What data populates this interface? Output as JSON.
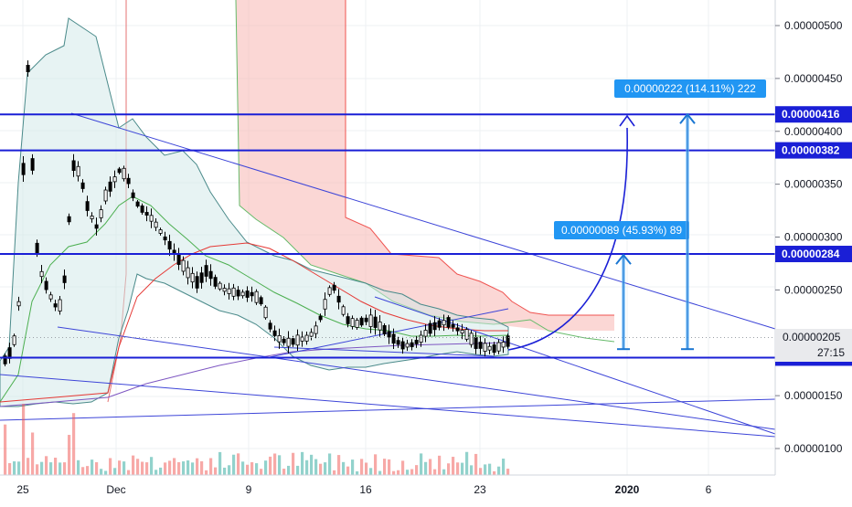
{
  "chart_data": {
    "type": "candlestick",
    "y_axis_ticks": [
      "0.00000500",
      "0.00000450",
      "0.00000400",
      "0.00000350",
      "0.00000300",
      "0.00000250",
      "0.00000150",
      "0.00000100"
    ],
    "x_axis_ticks": [
      "25",
      "Dec",
      "9",
      "16",
      "23",
      "2020",
      "6"
    ],
    "price_levels": [
      {
        "label": "0.00000416",
        "value": 4.16e-06
      },
      {
        "label": "0.00000382",
        "value": 3.82e-06
      },
      {
        "label": "0.00000284",
        "value": 2.84e-06
      },
      {
        "label": "0.00000186",
        "value": 1.86e-06
      }
    ],
    "current_price": {
      "label": "0.00000205",
      "value": 2.05e-06
    },
    "countdown": "27:15",
    "targets": [
      {
        "label": "0.00000089 (45.93%) 89",
        "from": 1.94e-06,
        "to": 2.83e-06
      },
      {
        "label": "0.00000222 (114.11%) 222",
        "from": 1.94e-06,
        "to": 4.16e-06
      }
    ],
    "colors": {
      "up": "#26a69a",
      "down": "#ef5350",
      "levels": "#1a1fd6",
      "target_box": "#2196f3",
      "cloud": "#f7b7b2",
      "bollinger": "#4a8a8a"
    }
  }
}
